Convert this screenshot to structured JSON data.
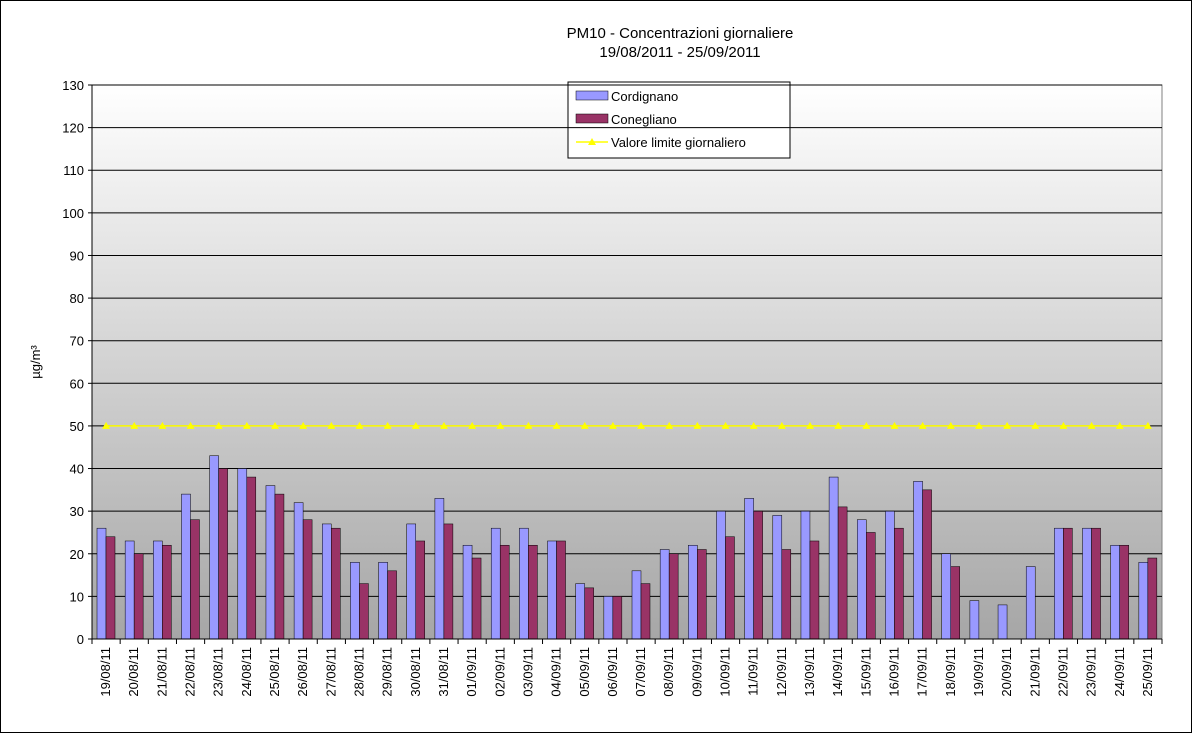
{
  "chart_data": {
    "type": "bar",
    "title": "PM10 - Concentrazioni giornaliere",
    "subtitle": "19/08/2011 - 25/09/2011",
    "y_label": "µg/m³",
    "categories": [
      "19/08/11",
      "20/08/11",
      "21/08/11",
      "22/08/11",
      "23/08/11",
      "24/08/11",
      "25/08/11",
      "26/08/11",
      "27/08/11",
      "28/08/11",
      "29/08/11",
      "30/08/11",
      "31/08/11",
      "01/09/11",
      "02/09/11",
      "03/09/11",
      "04/09/11",
      "05/09/11",
      "06/09/11",
      "07/09/11",
      "08/09/11",
      "09/09/11",
      "10/09/11",
      "11/09/11",
      "12/09/11",
      "13/09/11",
      "14/09/11",
      "15/09/11",
      "16/09/11",
      "17/09/11",
      "18/09/11",
      "19/09/11",
      "20/09/11",
      "21/09/11",
      "22/09/11",
      "23/09/11",
      "24/09/11",
      "25/09/11"
    ],
    "series": [
      {
        "name": "Cordignano",
        "color": "#9999ff",
        "values": [
          26,
          23,
          23,
          34,
          43,
          40,
          36,
          32,
          27,
          18,
          18,
          27,
          33,
          22,
          26,
          26,
          23,
          13,
          10,
          16,
          21,
          22,
          30,
          33,
          29,
          30,
          38,
          28,
          30,
          37,
          20,
          9,
          8,
          17,
          26,
          26,
          22,
          18
        ]
      },
      {
        "name": "Conegliano",
        "color": "#993366",
        "values": [
          24,
          20,
          22,
          28,
          40,
          38,
          34,
          28,
          26,
          13,
          16,
          23,
          27,
          19,
          22,
          22,
          23,
          12,
          10,
          13,
          20,
          21,
          24,
          30,
          21,
          23,
          31,
          25,
          26,
          35,
          17,
          null,
          null,
          null,
          26,
          26,
          22,
          19
        ]
      },
      {
        "name": "Valore limite giornaliero",
        "color": "#ffff00",
        "type": "line",
        "values": [
          50,
          50,
          50,
          50,
          50,
          50,
          50,
          50,
          50,
          50,
          50,
          50,
          50,
          50,
          50,
          50,
          50,
          50,
          50,
          50,
          50,
          50,
          50,
          50,
          50,
          50,
          50,
          50,
          50,
          50,
          50,
          50,
          50,
          50,
          50,
          50,
          50,
          50
        ]
      }
    ],
    "ylim": [
      0,
      130
    ],
    "yticks": [
      0,
      10,
      20,
      30,
      40,
      50,
      60,
      70,
      80,
      90,
      100,
      110,
      120,
      130
    ],
    "grid": true
  }
}
